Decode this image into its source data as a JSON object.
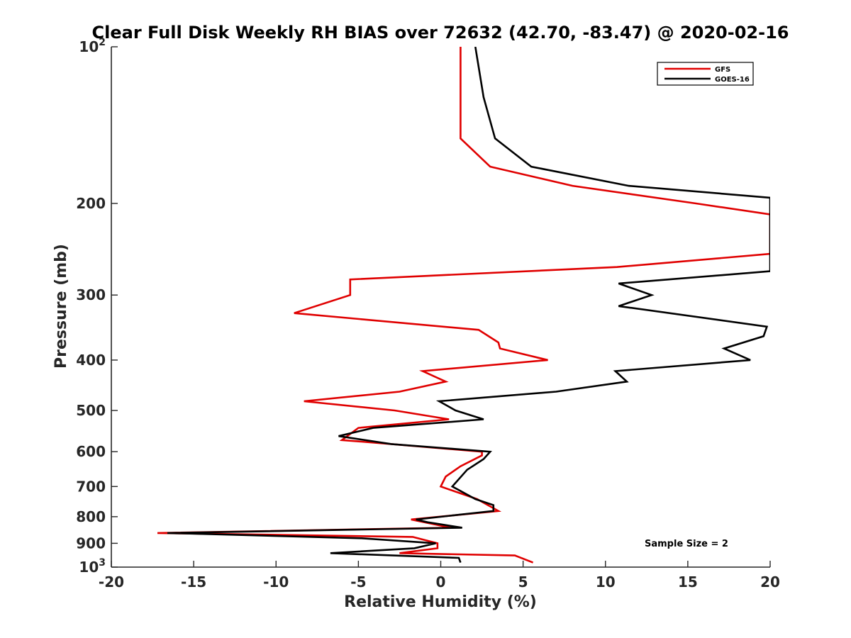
{
  "chart_data": {
    "type": "line",
    "title": "Clear Full Disk Weekly RH BIAS over 72632 (42.70, -83.47) @ 2020-02-16",
    "xlabel": "Relative Humidity (%)",
    "ylabel": "Pressure (mb)",
    "xlim": [
      -20,
      20
    ],
    "ylim": [
      100,
      1000
    ],
    "y_scale": "log",
    "y_reversed": true,
    "x_ticks": [
      "-20",
      "-15",
      "-10",
      "-5",
      "0",
      "5",
      "10",
      "15",
      "20"
    ],
    "y_ticks": [
      {
        "value": 100,
        "base": "10",
        "exp": "2"
      },
      {
        "value": 200,
        "label": "200"
      },
      {
        "value": 300,
        "label": "300"
      },
      {
        "value": 400,
        "label": "400"
      },
      {
        "value": 500,
        "label": "500"
      },
      {
        "value": 600,
        "label": "600"
      },
      {
        "value": 700,
        "label": "700"
      },
      {
        "value": 800,
        "label": "800"
      },
      {
        "value": 900,
        "label": "900"
      },
      {
        "value": 1000,
        "base": "10",
        "exp": "3"
      }
    ],
    "grid": false,
    "legend_position": "top-right",
    "annotation": "Sample Size = 2",
    "series": [
      {
        "name": "GFS",
        "color": "#e00000",
        "points": [
          [
            1.2,
            100
          ],
          [
            1.2,
            125
          ],
          [
            1.2,
            150
          ],
          [
            3.0,
            170
          ],
          [
            8.0,
            185
          ],
          [
            15.5,
            200
          ],
          [
            20,
            210
          ],
          [
            20,
            250
          ],
          [
            10.7,
            265
          ],
          [
            -5.5,
            280
          ],
          [
            -5.5,
            300
          ],
          [
            -8.9,
            325
          ],
          [
            2.3,
            350
          ],
          [
            3.5,
            370
          ],
          [
            3.6,
            380
          ],
          [
            6.5,
            400
          ],
          [
            -1.1,
            420
          ],
          [
            0.3,
            440
          ],
          [
            -2.5,
            460
          ],
          [
            -8.3,
            480
          ],
          [
            -2.8,
            500
          ],
          [
            0.5,
            520
          ],
          [
            -5.0,
            540
          ],
          [
            -6.0,
            570
          ],
          [
            -3.0,
            580
          ],
          [
            2.5,
            600
          ],
          [
            2.5,
            610
          ],
          [
            1.2,
            640
          ],
          [
            0.3,
            670
          ],
          [
            0.0,
            700
          ],
          [
            2.2,
            740
          ],
          [
            3.5,
            780
          ],
          [
            -1.8,
            810
          ],
          [
            0.6,
            840
          ],
          [
            -17.2,
            860
          ],
          [
            -1.7,
            875
          ],
          [
            -0.2,
            900
          ],
          [
            -0.2,
            920
          ],
          [
            -2.5,
            940
          ],
          [
            4.5,
            950
          ],
          [
            5.6,
            980
          ]
        ]
      },
      {
        "name": "GOES-16",
        "color": "#000000",
        "points": [
          [
            2.1,
            100
          ],
          [
            2.6,
            125
          ],
          [
            3.3,
            150
          ],
          [
            5.5,
            170
          ],
          [
            11.4,
            185
          ],
          [
            20,
            195
          ],
          [
            20,
            270
          ],
          [
            10.8,
            285
          ],
          [
            12.8,
            300
          ],
          [
            10.8,
            315
          ],
          [
            19.8,
            345
          ],
          [
            19.6,
            360
          ],
          [
            17.2,
            380
          ],
          [
            18.8,
            400
          ],
          [
            10.6,
            420
          ],
          [
            11.3,
            440
          ],
          [
            7.0,
            460
          ],
          [
            -0.1,
            480
          ],
          [
            0.9,
            500
          ],
          [
            2.6,
            520
          ],
          [
            -4.1,
            540
          ],
          [
            -6.2,
            560
          ],
          [
            -3.0,
            580
          ],
          [
            3.0,
            600
          ],
          [
            2.6,
            620
          ],
          [
            1.6,
            650
          ],
          [
            0.7,
            700
          ],
          [
            2.1,
            740
          ],
          [
            3.2,
            760
          ],
          [
            3.2,
            780
          ],
          [
            -1.5,
            810
          ],
          [
            -0.8,
            820
          ],
          [
            1.3,
            840
          ],
          [
            -16.6,
            860
          ],
          [
            -4.8,
            880
          ],
          [
            -0.3,
            900
          ],
          [
            -1.6,
            920
          ],
          [
            -6.7,
            940
          ],
          [
            1.1,
            960
          ],
          [
            1.2,
            980
          ]
        ]
      }
    ]
  }
}
